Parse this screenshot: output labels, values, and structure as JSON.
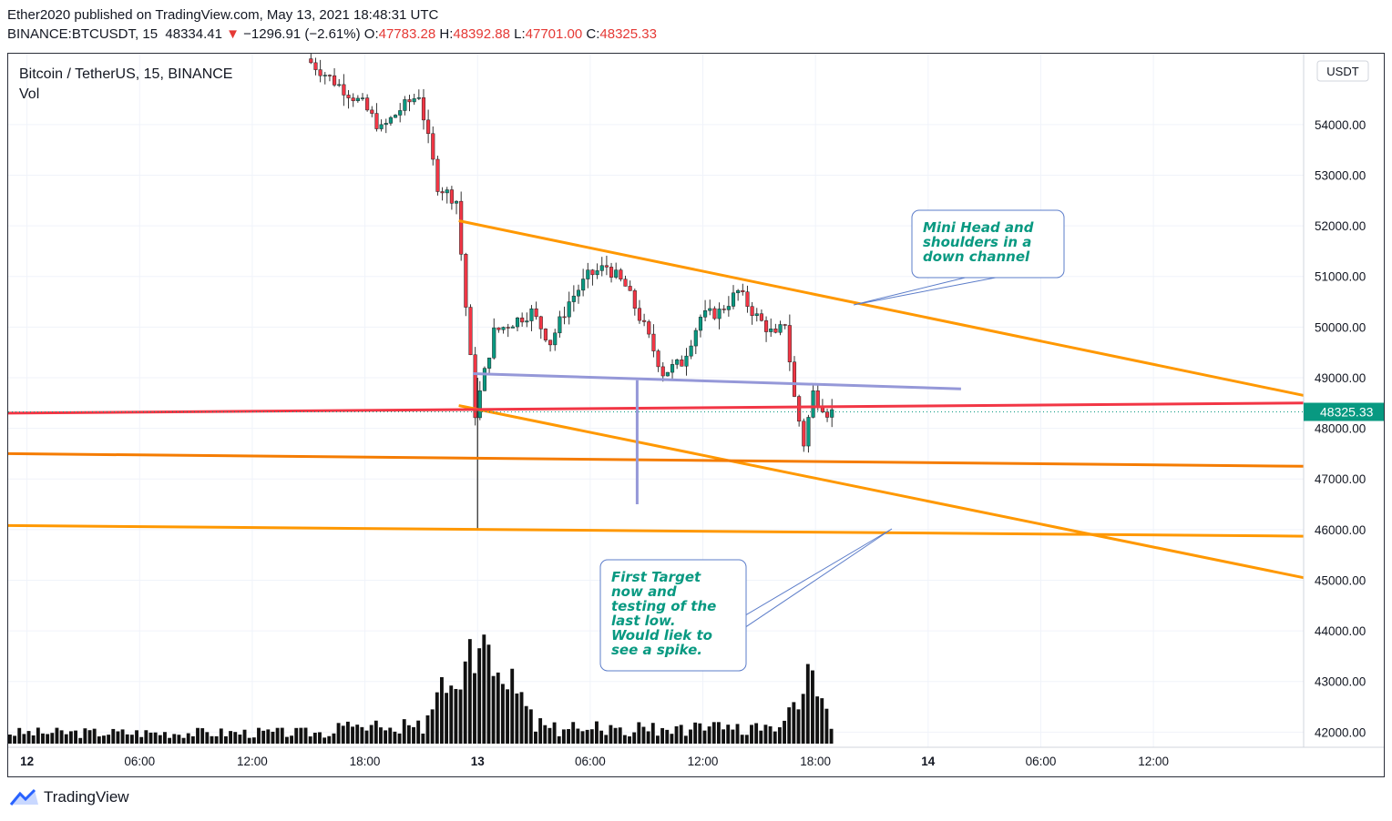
{
  "header": {
    "published_line": "Ether2020 published on TradingView.com, May 13, 2021 18:48:31 UTC",
    "symbol": "BINANCE:BTCUSDT, 15",
    "last": "48334.41",
    "change_arrow": "▼",
    "change": "−1296.91 (−2.61%)",
    "o_label": "O:",
    "o_value": "47783.28",
    "h_label": "H:",
    "h_value": "48392.88",
    "l_label": "L:",
    "l_value": "47701.00",
    "c_label": "C:",
    "c_value": "48325.33"
  },
  "legend": {
    "title": "Bitcoin / TetherUS, 15, BINANCE",
    "indicator": "Vol"
  },
  "currency_badge": "USDT",
  "last_price_label": "48325.33",
  "callouts": {
    "top": [
      "Mini Head and",
      "shoulders in a",
      "down channel"
    ],
    "bottom": [
      "First Target",
      "now and",
      "testing of the",
      "last low.",
      "Would liek to",
      "see a spike."
    ]
  },
  "footer": {
    "brand": "TradingView"
  },
  "colors": {
    "up": "#089981",
    "down": "#f23645",
    "orange": "#ff9800",
    "dark_orange": "#f57c00",
    "red_line": "#f23645",
    "purple": "#9598d8",
    "callout_border": "#5b7cc9",
    "callout_text": "#089981",
    "price_badge": "#089981"
  },
  "chart_data": {
    "type": "candlestick",
    "symbol": "BINANCE:BTCUSDT",
    "interval": "15",
    "y_axis": {
      "ylim": [
        41700,
        55400
      ],
      "ticks": [
        42000,
        43000,
        44000,
        45000,
        46000,
        47000,
        48000,
        49000,
        50000,
        51000,
        52000,
        53000,
        54000
      ],
      "tick_labels": [
        "42000.00",
        "43000.00",
        "44000.00",
        "45000.00",
        "46000.00",
        "47000.00",
        "48000.00",
        "49000.00",
        "50000.00",
        "51000.00",
        "52000.00",
        "53000.00",
        "54000.00"
      ]
    },
    "x_axis": {
      "start": "2021-05-11T23:00Z",
      "end": "2021-05-14T20:00Z",
      "ticks": [
        "2021-05-12T00:00Z",
        "2021-05-12T06:00Z",
        "2021-05-12T12:00Z",
        "2021-05-12T18:00Z",
        "2021-05-13T00:00Z",
        "2021-05-13T06:00Z",
        "2021-05-13T12:00Z",
        "2021-05-13T18:00Z",
        "2021-05-14T00:00Z",
        "2021-05-14T06:00Z",
        "2021-05-14T12:00Z"
      ],
      "tick_labels": [
        "12",
        "06:00",
        "12:00",
        "18:00",
        "13",
        "06:00",
        "12:00",
        "18:00",
        "14",
        "06:00",
        "12:00"
      ],
      "bold_labels": [
        "12",
        "13",
        "14"
      ]
    },
    "price_path_keypoints": [
      {
        "t": "2021-05-12T15:00Z",
        "price": 55300
      },
      {
        "t": "2021-05-12T16:00Z",
        "price": 55000
      },
      {
        "t": "2021-05-12T17:00Z",
        "price": 54700
      },
      {
        "t": "2021-05-12T18:00Z",
        "price": 54400
      },
      {
        "t": "2021-05-12T19:00Z",
        "price": 53900
      },
      {
        "t": "2021-05-12T20:00Z",
        "price": 54300
      },
      {
        "t": "2021-05-12T21:00Z",
        "price": 54600
      },
      {
        "t": "2021-05-12T22:00Z",
        "price": 52800
      },
      {
        "t": "2021-05-12T23:00Z",
        "price": 52500
      },
      {
        "t": "2021-05-13T00:00Z",
        "price": 48300
      },
      {
        "t": "2021-05-13T01:00Z",
        "price": 49900
      },
      {
        "t": "2021-05-13T03:00Z",
        "price": 50300
      },
      {
        "t": "2021-05-13T04:00Z",
        "price": 49700
      },
      {
        "t": "2021-05-13T05:00Z",
        "price": 50500
      },
      {
        "t": "2021-05-13T06:00Z",
        "price": 51000
      },
      {
        "t": "2021-05-13T07:00Z",
        "price": 51200
      },
      {
        "t": "2021-05-13T08:00Z",
        "price": 50800
      },
      {
        "t": "2021-05-13T09:00Z",
        "price": 50000
      },
      {
        "t": "2021-05-13T10:00Z",
        "price": 49100
      },
      {
        "t": "2021-05-13T11:00Z",
        "price": 49300
      },
      {
        "t": "2021-05-13T12:00Z",
        "price": 50200
      },
      {
        "t": "2021-05-13T13:00Z",
        "price": 50300
      },
      {
        "t": "2021-05-13T14:00Z",
        "price": 50700
      },
      {
        "t": "2021-05-13T15:00Z",
        "price": 50200
      },
      {
        "t": "2021-05-13T16:00Z",
        "price": 49800
      },
      {
        "t": "2021-05-13T16:30Z",
        "price": 50100
      },
      {
        "t": "2021-05-13T17:00Z",
        "price": 48600
      },
      {
        "t": "2021-05-13T17:30Z",
        "price": 47700
      },
      {
        "t": "2021-05-13T18:00Z",
        "price": 48700
      },
      {
        "t": "2021-05-13T18:45Z",
        "price": 48325
      }
    ],
    "notable_levels": {
      "low_2021_05_13": 46000,
      "last": 48325.33
    },
    "volume_note": "Volume bars at bottom; spike near 2021-05-13T00:00Z"
  }
}
